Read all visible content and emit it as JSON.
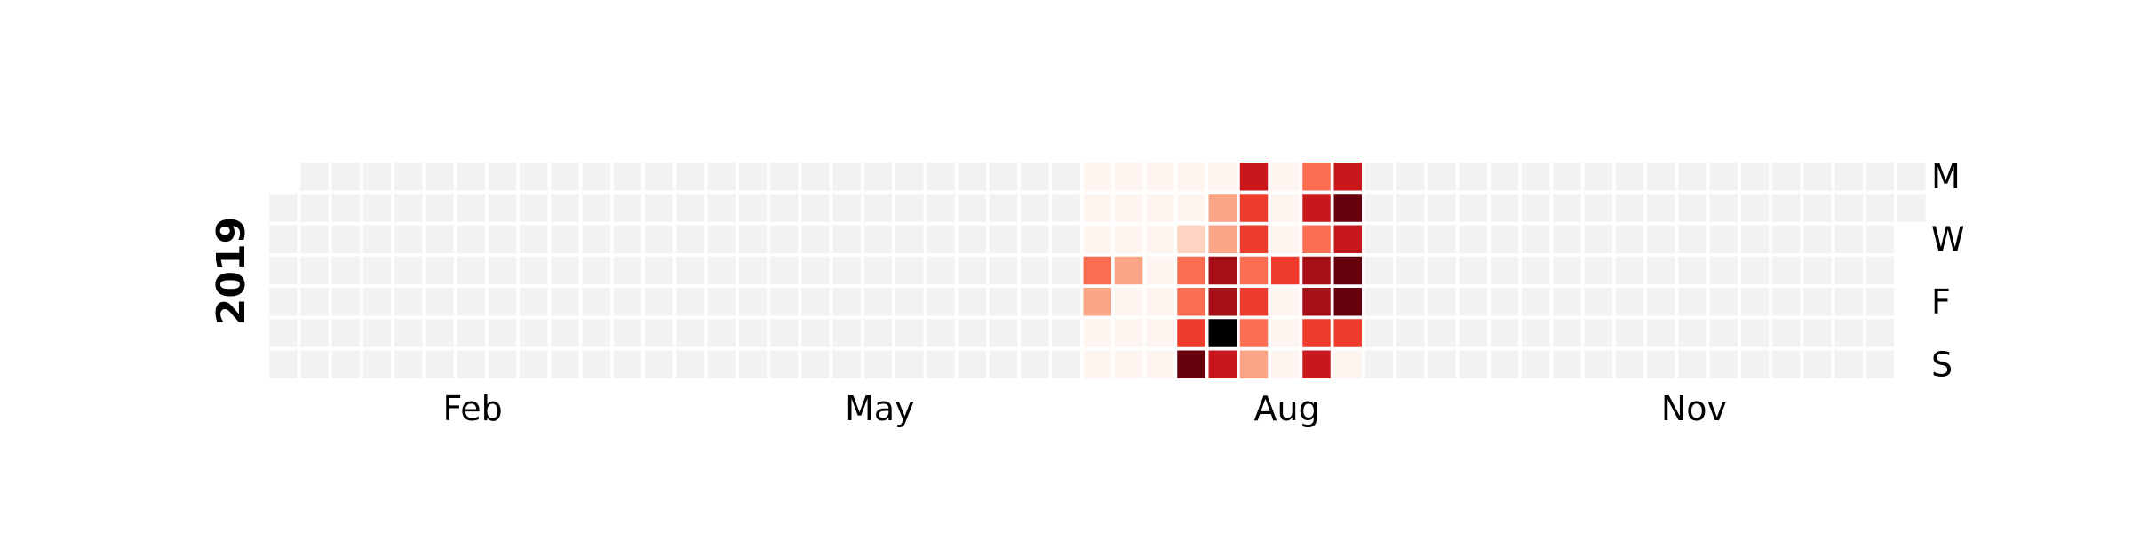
{
  "chart_data": {
    "type": "heatmap",
    "year": "2019",
    "start_date": "2019-01-01",
    "end_date": "2019-12-31",
    "day_labels": [
      "M",
      "W",
      "F",
      "S"
    ],
    "month_labels": [
      "Feb",
      "May",
      "Aug",
      "Nov"
    ],
    "colors": {
      "empty": "#f2f2f2",
      "scale": [
        "#fff5f0",
        "#fdd4c2",
        "#fca486",
        "#fc6e51",
        "#ef3b2c",
        "#c9181d",
        "#a50f15",
        "#67000d"
      ]
    },
    "values": {
      "2019-07-01": 0,
      "2019-07-02": 0,
      "2019-07-03": 0,
      "2019-07-04": 3,
      "2019-07-05": 2,
      "2019-07-06": 0,
      "2019-07-07": 0,
      "2019-07-08": 0,
      "2019-07-09": 0,
      "2019-07-10": 0,
      "2019-07-11": 2,
      "2019-07-12": 0,
      "2019-07-13": 0,
      "2019-07-14": 0,
      "2019-07-15": 0,
      "2019-07-16": 0,
      "2019-07-17": 0,
      "2019-07-18": 0,
      "2019-07-19": 0,
      "2019-07-20": 0,
      "2019-07-21": 0,
      "2019-07-22": 0,
      "2019-07-23": 0,
      "2019-07-24": 1,
      "2019-07-25": 3,
      "2019-07-26": 3,
      "2019-07-27": 4,
      "2019-07-28": 7,
      "2019-07-29": 0,
      "2019-07-30": 2,
      "2019-07-31": 2,
      "2019-08-01": 6,
      "2019-08-02": 6,
      "2019-08-03": 8,
      "2019-08-04": 5,
      "2019-08-05": 5,
      "2019-08-06": 4,
      "2019-08-07": 4,
      "2019-08-08": 3,
      "2019-08-09": 4,
      "2019-08-10": 3,
      "2019-08-11": 2,
      "2019-08-12": 0,
      "2019-08-13": 0,
      "2019-08-14": 0,
      "2019-08-15": 4,
      "2019-08-16": 0,
      "2019-08-17": 0,
      "2019-08-18": 0,
      "2019-08-19": 3,
      "2019-08-20": 5,
      "2019-08-21": 3,
      "2019-08-22": 6,
      "2019-08-23": 6,
      "2019-08-24": 4,
      "2019-08-25": 5,
      "2019-08-26": 5,
      "2019-08-27": 7,
      "2019-08-28": 5,
      "2019-08-29": 7,
      "2019-08-30": 7,
      "2019-08-31": 4,
      "2019-09-01": 0
    }
  }
}
